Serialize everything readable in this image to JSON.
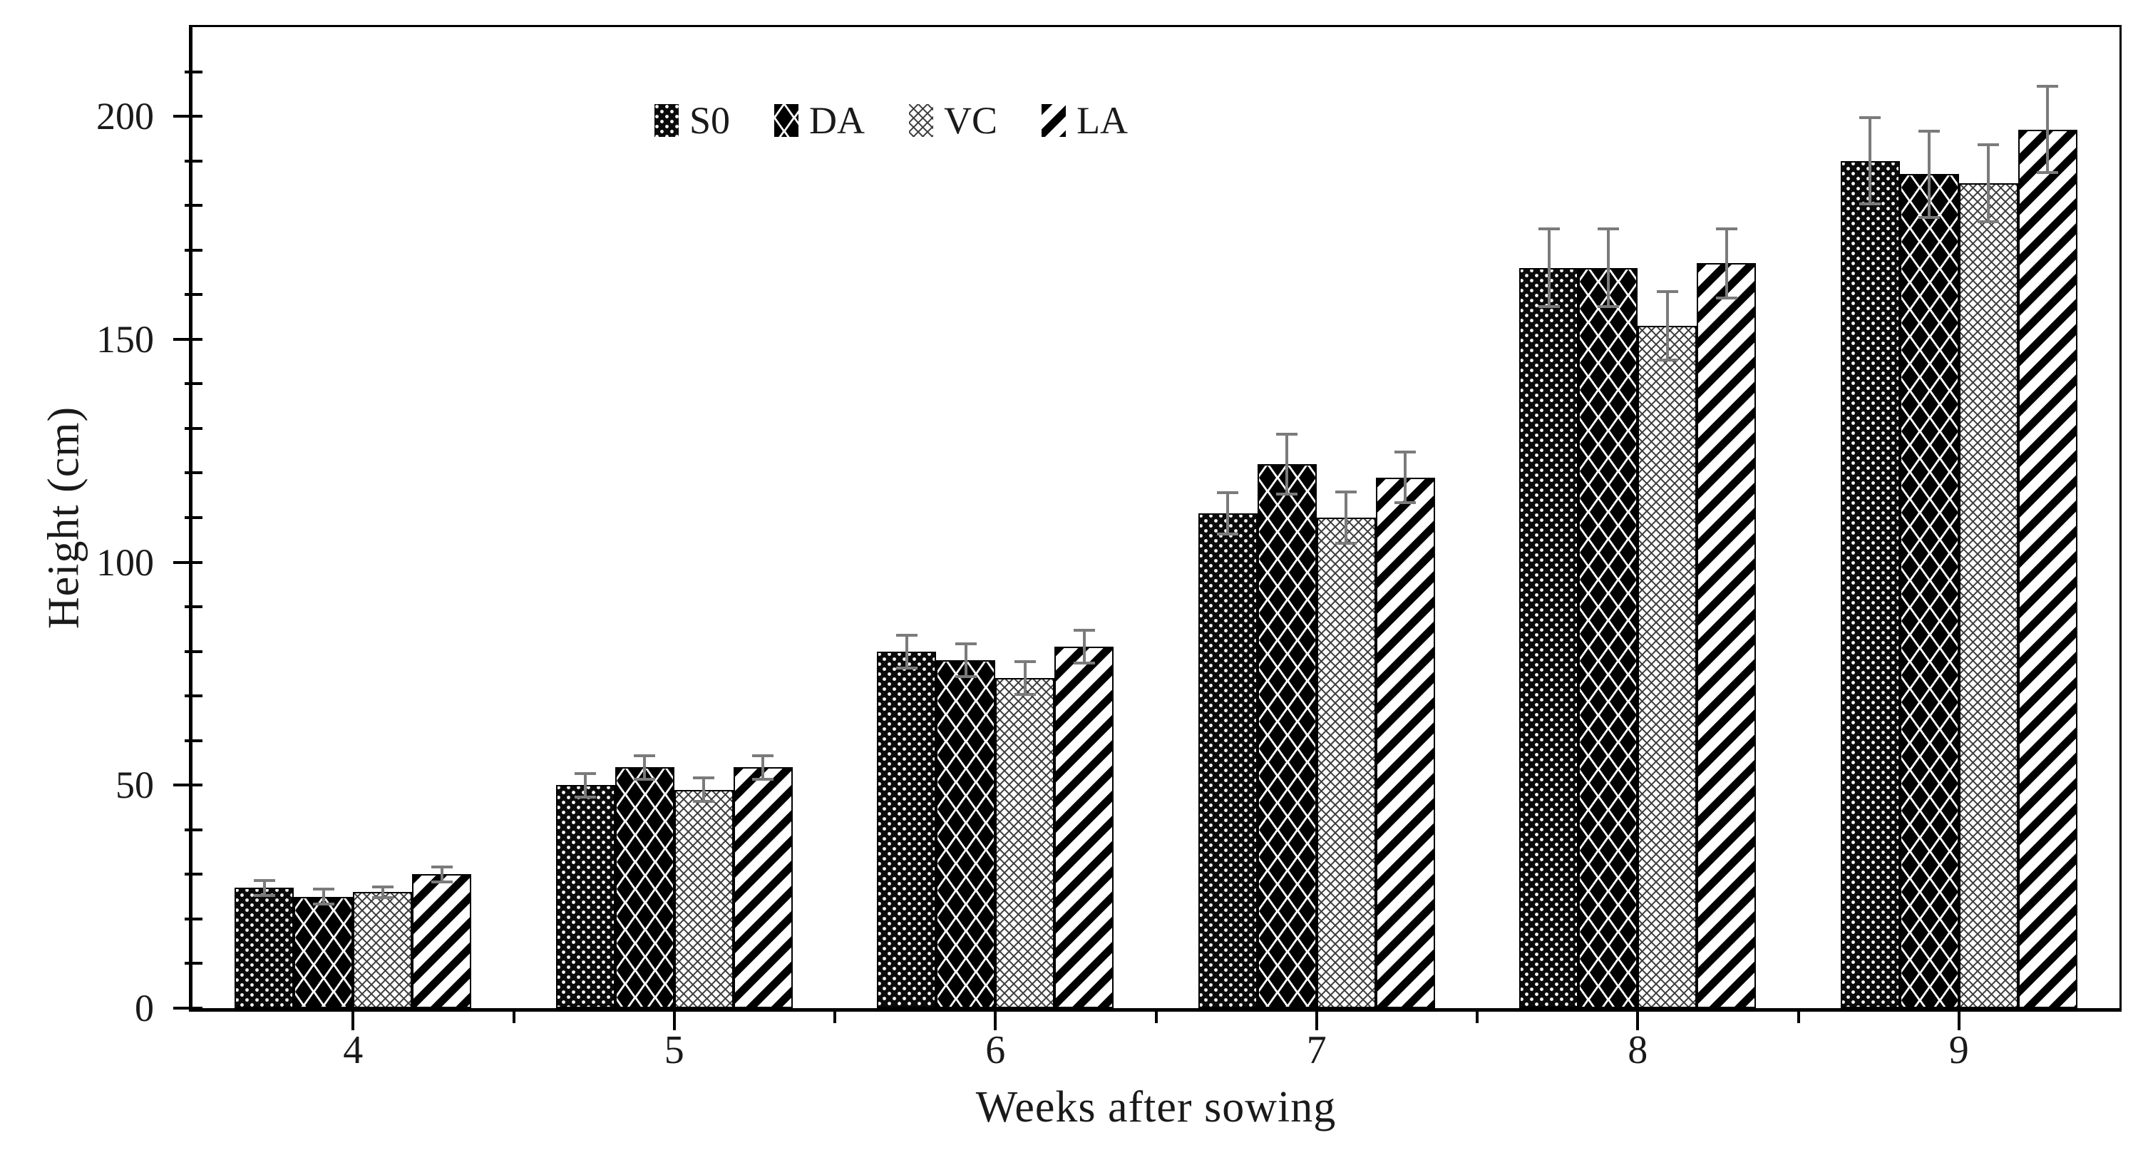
{
  "chart_data": {
    "type": "bar",
    "title": "",
    "xlabel": "Weeks after sowing",
    "ylabel": "Height (cm)",
    "categories": [
      "4",
      "5",
      "6",
      "7",
      "8",
      "9"
    ],
    "series": [
      {
        "name": "S0",
        "pattern": "dense-white-dot-grid-on-black",
        "values": [
          27,
          50,
          80,
          111,
          166,
          190
        ],
        "errors": [
          2,
          3,
          4,
          5,
          9,
          10
        ]
      },
      {
        "name": "DA",
        "pattern": "black-diamond-checker-on-white",
        "values": [
          25,
          54,
          78,
          122,
          166,
          187
        ],
        "errors": [
          2,
          3,
          4,
          7,
          9,
          10
        ]
      },
      {
        "name": "VC",
        "pattern": "gray-diamond-lattice-crosshatch",
        "values": [
          26,
          49,
          74,
          110,
          153,
          185
        ],
        "errors": [
          1.5,
          3,
          4,
          6,
          8,
          9
        ]
      },
      {
        "name": "LA",
        "pattern": "bold-diagonal-stripes",
        "values": [
          30,
          54,
          81,
          119,
          167,
          197
        ],
        "errors": [
          2,
          3,
          4,
          6,
          8,
          10
        ]
      }
    ],
    "ylim": [
      0,
      220
    ],
    "ytick_labels": [
      0,
      50,
      100,
      150,
      200
    ],
    "yminor_step": 10,
    "grid": false,
    "legend_position": "inside-top-center",
    "error_bars": "symmetric-gray-caps"
  },
  "colors": {
    "background": "#ffffff",
    "ink": "#000000",
    "error_bar": "#7b7b7b",
    "vc_lattice": "#3d3d3d"
  }
}
